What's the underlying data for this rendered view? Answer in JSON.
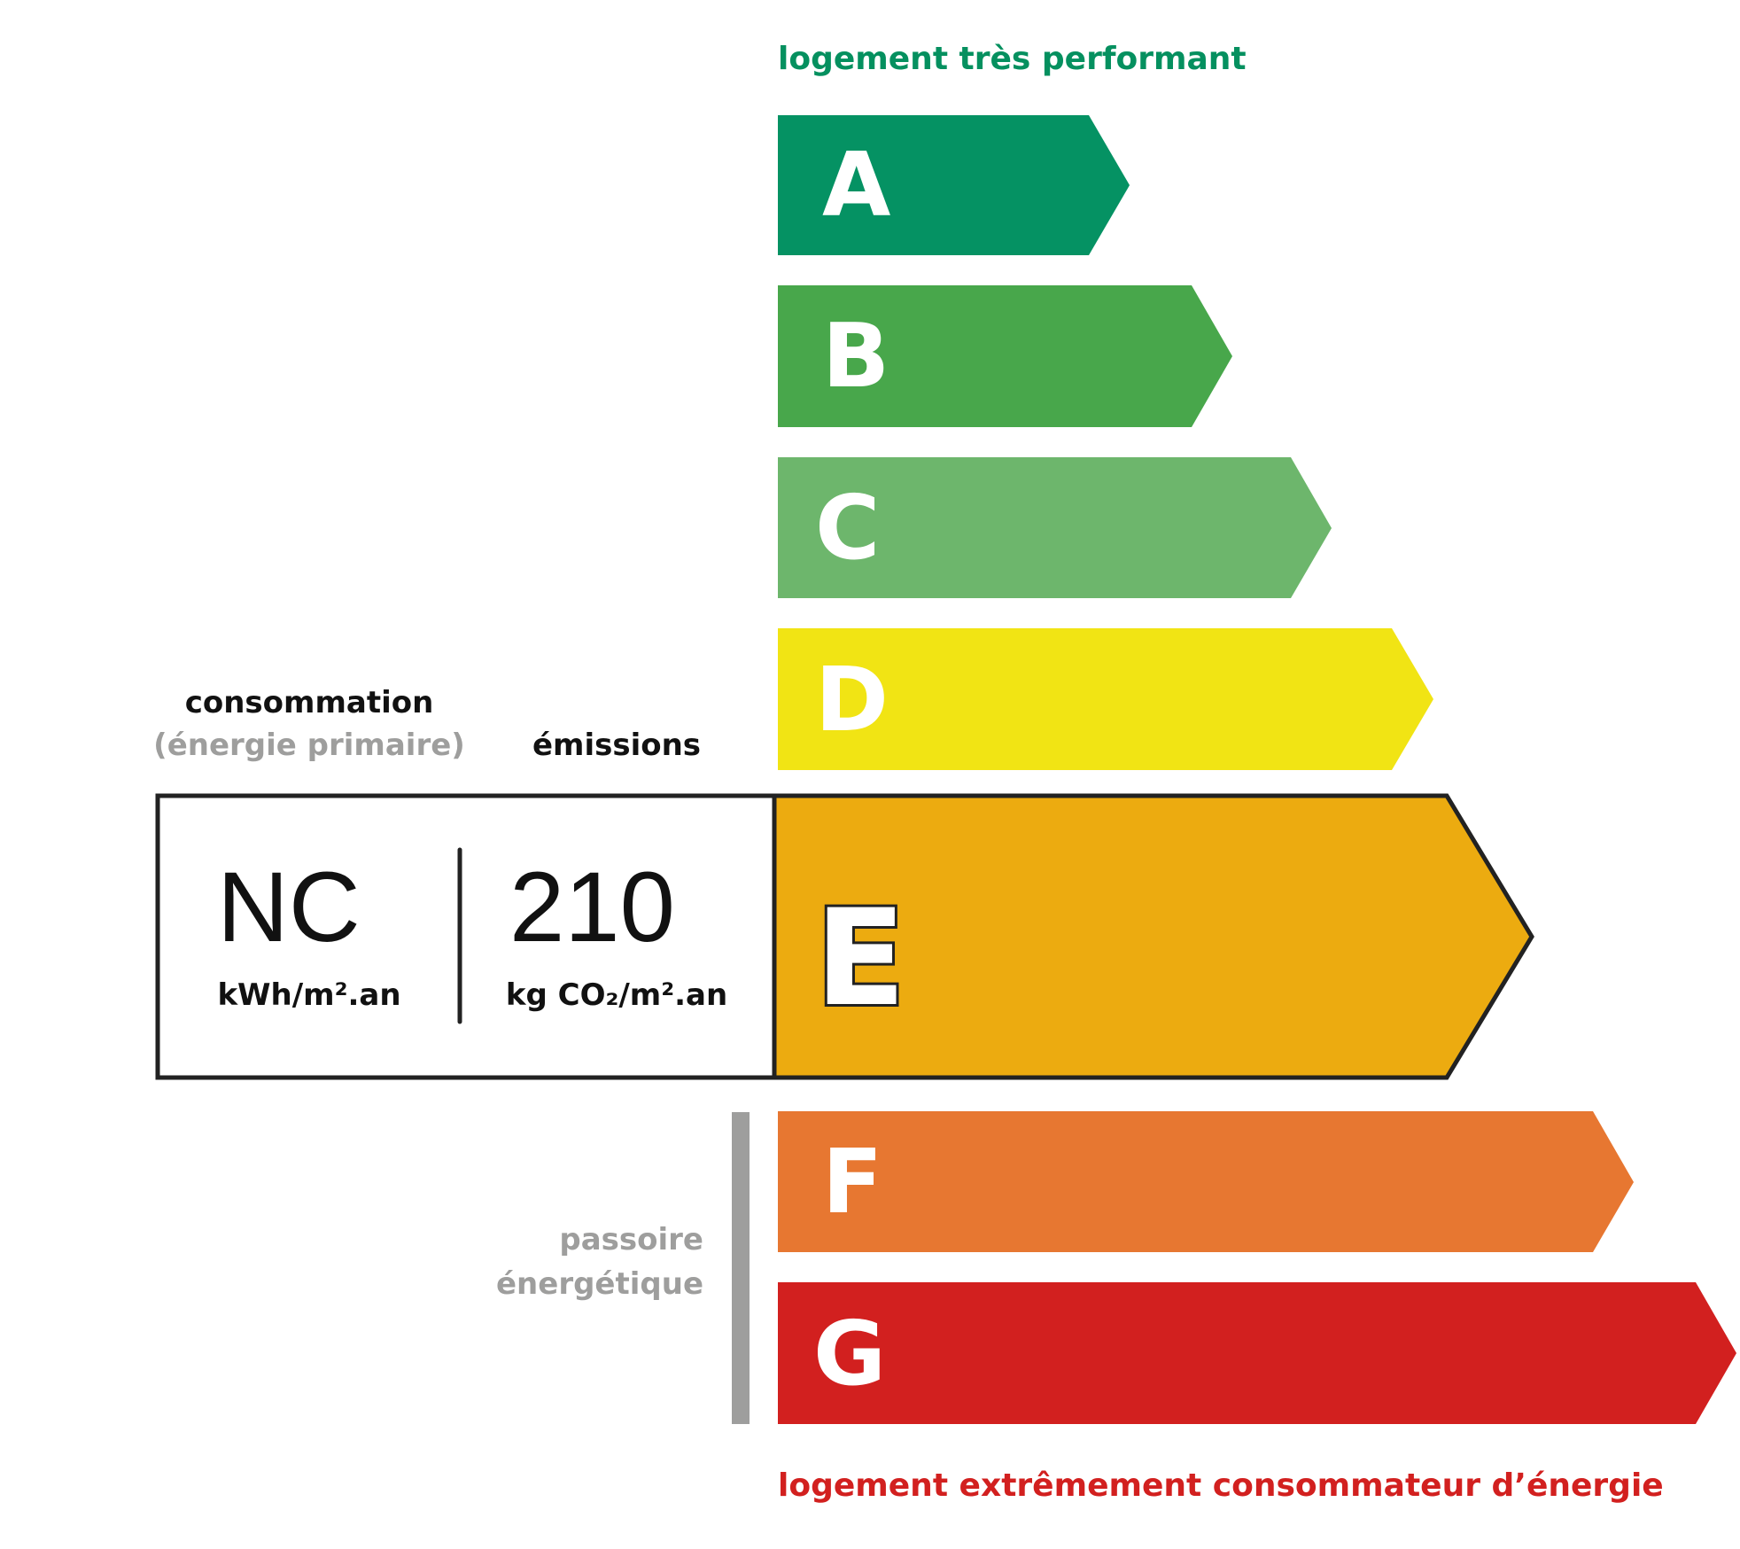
{
  "header": {
    "top_label": "logement très performant",
    "bottom_label": "logement extrêmement consommateur d’énergie"
  },
  "colors": {
    "top_label": "#05905f",
    "bottom_label": "#d2201f",
    "muted": "#9e9e9d"
  },
  "classes": [
    {
      "letter": "A",
      "color": "#059263"
    },
    {
      "letter": "B",
      "color": "#48a74b"
    },
    {
      "letter": "C",
      "color": "#6db66c"
    },
    {
      "letter": "D",
      "color": "#f1e414"
    },
    {
      "letter": "E",
      "color": "#ecab10",
      "selected": true
    },
    {
      "letter": "F",
      "color": "#e77731"
    },
    {
      "letter": "G",
      "color": "#d2201f"
    }
  ],
  "consumption": {
    "title": "consommation",
    "subtitle": "(énergie primaire)",
    "value": "NC",
    "unit": "kWh/m².an"
  },
  "emissions": {
    "title": "émissions",
    "value": "210",
    "unit": "kg CO₂/m².an"
  },
  "passoire": {
    "line1": "passoire",
    "line2": "énergétique"
  }
}
